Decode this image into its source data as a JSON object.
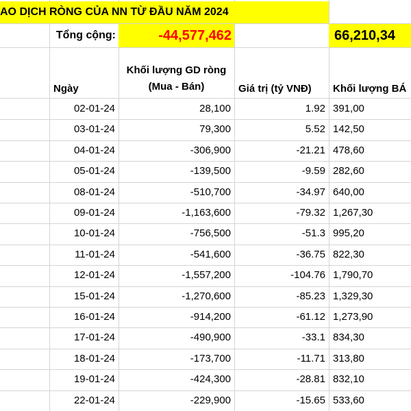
{
  "sheet": {
    "title": "AO DỊCH RÒNG CỦA NN TỪ ĐẦU NĂM 2024",
    "total_label": "Tổng cộng:",
    "total_net_volume": "-44,577,462",
    "total_sell_volume": "66,210,34",
    "headers": {
      "date": "Ngày",
      "net_volume_line1": "Khối lượng GD ròng",
      "net_volume_line2": "(Mua - Bán)",
      "value": "Giá trị (tỷ VNĐ)",
      "sell_volume": "Khối lượng BÁ"
    },
    "rows": [
      {
        "date": "02-01-24",
        "net": "28,100",
        "value": "1.92",
        "sell": "391,00"
      },
      {
        "date": "03-01-24",
        "net": "79,300",
        "value": "5.52",
        "sell": "142,50"
      },
      {
        "date": "04-01-24",
        "net": "-306,900",
        "value": "-21.21",
        "sell": "478,60"
      },
      {
        "date": "05-01-24",
        "net": "-139,500",
        "value": "-9.59",
        "sell": "282,60"
      },
      {
        "date": "08-01-24",
        "net": "-510,700",
        "value": "-34.97",
        "sell": "640,00"
      },
      {
        "date": "09-01-24",
        "net": "-1,163,600",
        "value": "-79.32",
        "sell": "1,267,30"
      },
      {
        "date": "10-01-24",
        "net": "-756,500",
        "value": "-51.3",
        "sell": "995,20"
      },
      {
        "date": "11-01-24",
        "net": "-541,600",
        "value": "-36.75",
        "sell": "822,30"
      },
      {
        "date": "12-01-24",
        "net": "-1,557,200",
        "value": "-104.76",
        "sell": "1,790,70"
      },
      {
        "date": "15-01-24",
        "net": "-1,270,600",
        "value": "-85.23",
        "sell": "1,329,30"
      },
      {
        "date": "16-01-24",
        "net": "-914,200",
        "value": "-61.12",
        "sell": "1,273,90"
      },
      {
        "date": "17-01-24",
        "net": "-490,900",
        "value": "-33.1",
        "sell": "834,30"
      },
      {
        "date": "18-01-24",
        "net": "-173,700",
        "value": "-11.71",
        "sell": "313,80"
      },
      {
        "date": "19-01-24",
        "net": "-424,300",
        "value": "-28.81",
        "sell": "832,10"
      },
      {
        "date": "22-01-24",
        "net": "-229,900",
        "value": "-15.65",
        "sell": "533,60"
      }
    ],
    "colors": {
      "highlight": "#ffff00",
      "negative_total": "#ff0000",
      "grid": "#d4d4d4"
    }
  }
}
